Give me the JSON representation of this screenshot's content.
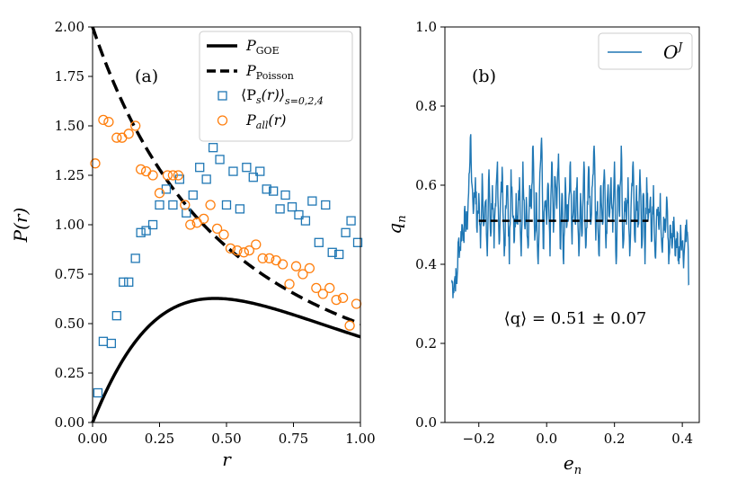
{
  "chart_data": [
    {
      "type": "scatter",
      "panel_label": "(a)",
      "xlabel": "r",
      "ylabel": "P(r)",
      "xlim": [
        0.0,
        1.0
      ],
      "ylim": [
        0.0,
        2.0
      ],
      "xticks": [
        "0.00",
        "0.25",
        "0.50",
        "0.75",
        "1.00"
      ],
      "yticks": [
        "0.00",
        "0.25",
        "0.50",
        "0.75",
        "1.00",
        "1.25",
        "1.50",
        "1.75",
        "2.00"
      ],
      "legend_position": "top-right",
      "colors": {
        "goe": "#000000",
        "poisson": "#000000",
        "ps": "#1f77b4",
        "pall": "#ff7f0e"
      },
      "series": [
        {
          "name": "P_GOE",
          "legend_main": "P",
          "legend_sub": "GOE",
          "style": "solid line",
          "formula": "(27/8) (r + r^2) / (1 + r + r^2)^(5/2)"
        },
        {
          "name": "P_Poisson",
          "legend_main": "P",
          "legend_sub": "Poisson",
          "style": "dashed line",
          "formula": "2 / (1 + r)^2"
        },
        {
          "name": "<P_s(r)>_{s=0,2,4}",
          "legend_main": "⟨P",
          "legend_s": "s",
          "legend_r": "(r)⟩",
          "legend_sub": "s=0,2,4",
          "style": "open squares",
          "x": [
            0.02,
            0.04,
            0.07,
            0.09,
            0.115,
            0.135,
            0.16,
            0.18,
            0.2,
            0.225,
            0.25,
            0.275,
            0.3,
            0.325,
            0.35,
            0.375,
            0.4,
            0.425,
            0.45,
            0.475,
            0.5,
            0.525,
            0.55,
            0.575,
            0.6,
            0.625,
            0.65,
            0.675,
            0.7,
            0.72,
            0.745,
            0.77,
            0.795,
            0.82,
            0.845,
            0.87,
            0.895,
            0.92,
            0.945,
            0.965,
            0.99
          ],
          "y": [
            0.15,
            0.41,
            0.4,
            0.54,
            0.71,
            0.71,
            0.83,
            0.96,
            0.97,
            1.0,
            1.1,
            1.18,
            1.1,
            1.23,
            1.06,
            1.15,
            1.29,
            1.23,
            1.39,
            1.33,
            1.1,
            1.27,
            1.08,
            1.29,
            1.24,
            1.27,
            1.18,
            1.17,
            1.08,
            1.15,
            1.09,
            1.05,
            1.02,
            1.12,
            0.91,
            1.1,
            0.86,
            0.85,
            0.96,
            1.02,
            0.91
          ]
        },
        {
          "name": "P_all(r)",
          "legend_main": "P",
          "legend_sub": "all",
          "legend_r": "(r)",
          "style": "open circles",
          "x": [
            0.01,
            0.04,
            0.06,
            0.09,
            0.11,
            0.135,
            0.16,
            0.18,
            0.2,
            0.225,
            0.25,
            0.28,
            0.3,
            0.32,
            0.345,
            0.365,
            0.39,
            0.415,
            0.44,
            0.465,
            0.49,
            0.515,
            0.54,
            0.565,
            0.585,
            0.61,
            0.635,
            0.66,
            0.685,
            0.71,
            0.735,
            0.76,
            0.785,
            0.81,
            0.835,
            0.86,
            0.885,
            0.91,
            0.935,
            0.96,
            0.985
          ],
          "y": [
            1.31,
            1.53,
            1.52,
            1.44,
            1.44,
            1.46,
            1.5,
            1.28,
            1.27,
            1.25,
            1.16,
            1.25,
            1.25,
            1.25,
            1.1,
            1.0,
            1.01,
            1.03,
            1.1,
            0.98,
            0.95,
            0.88,
            0.87,
            0.86,
            0.87,
            0.9,
            0.83,
            0.83,
            0.82,
            0.8,
            0.7,
            0.79,
            0.75,
            0.78,
            0.68,
            0.65,
            0.68,
            0.62,
            0.63,
            0.49,
            0.6
          ]
        }
      ]
    },
    {
      "type": "line",
      "panel_label": "(b)",
      "xlabel": "e",
      "xlabel_sub": "n",
      "ylabel": "q",
      "ylabel_sub": "n",
      "xlim": [
        -0.3,
        0.45
      ],
      "ylim": [
        0.0,
        1.0
      ],
      "xticks": [
        -0.2,
        0.0,
        0.2,
        0.4
      ],
      "xtick_labels": [
        "−0.2",
        "0.0",
        "0.2",
        "0.4"
      ],
      "yticks": [
        0.0,
        0.2,
        0.4,
        0.6,
        0.8,
        1.0
      ],
      "ytick_labels": [
        "0.0",
        "0.2",
        "0.4",
        "0.6",
        "0.8",
        "1.0"
      ],
      "legend_position": "top-right",
      "annotation": "⟨q⟩ = 0.51 ± 0.07",
      "mean_line": {
        "x": [
          -0.2,
          0.3
        ],
        "y": 0.51,
        "style": "dashed black"
      },
      "series": [
        {
          "name": "O^J",
          "legend_main": "O",
          "legend_sup": "J",
          "color": "#1f77b4",
          "x": [
            -0.28,
            -0.275,
            -0.27,
            -0.265,
            -0.26,
            -0.255,
            -0.25,
            -0.245,
            -0.24,
            -0.235,
            -0.23,
            -0.225,
            -0.22,
            -0.215,
            -0.21,
            -0.205,
            -0.2,
            -0.195,
            -0.19,
            -0.185,
            -0.18,
            -0.175,
            -0.17,
            -0.165,
            -0.16,
            -0.155,
            -0.15,
            -0.145,
            -0.14,
            -0.135,
            -0.13,
            -0.125,
            -0.12,
            -0.115,
            -0.11,
            -0.105,
            -0.1,
            -0.095,
            -0.09,
            -0.085,
            -0.08,
            -0.075,
            -0.07,
            -0.065,
            -0.06,
            -0.055,
            -0.05,
            -0.045,
            -0.04,
            -0.035,
            -0.03,
            -0.025,
            -0.02,
            -0.015,
            -0.01,
            -0.005,
            0.0,
            0.005,
            0.01,
            0.015,
            0.02,
            0.025,
            0.03,
            0.035,
            0.04,
            0.045,
            0.05,
            0.055,
            0.06,
            0.065,
            0.07,
            0.075,
            0.08,
            0.085,
            0.09,
            0.095,
            0.1,
            0.105,
            0.11,
            0.115,
            0.12,
            0.125,
            0.13,
            0.135,
            0.14,
            0.145,
            0.15,
            0.155,
            0.16,
            0.165,
            0.17,
            0.175,
            0.18,
            0.185,
            0.19,
            0.195,
            0.2,
            0.205,
            0.21,
            0.215,
            0.22,
            0.225,
            0.23,
            0.235,
            0.24,
            0.245,
            0.25,
            0.255,
            0.26,
            0.265,
            0.27,
            0.275,
            0.28,
            0.285,
            0.29,
            0.295,
            0.3,
            0.305,
            0.31,
            0.315,
            0.32,
            0.325,
            0.33,
            0.335,
            0.34,
            0.345,
            0.35,
            0.355,
            0.36,
            0.365,
            0.37,
            0.375,
            0.38,
            0.385,
            0.39,
            0.395,
            0.4,
            0.405,
            0.41,
            0.415,
            0.42
          ],
          "y": [
            0.36,
            0.34,
            0.37,
            0.35,
            0.46,
            0.44,
            0.5,
            0.48,
            0.52,
            0.49,
            0.58,
            0.72,
            0.6,
            0.54,
            0.62,
            0.48,
            0.58,
            0.44,
            0.63,
            0.5,
            0.56,
            0.42,
            0.64,
            0.47,
            0.6,
            0.44,
            0.55,
            0.66,
            0.45,
            0.58,
            0.62,
            0.42,
            0.54,
            0.6,
            0.4,
            0.64,
            0.52,
            0.46,
            0.58,
            0.5,
            0.62,
            0.42,
            0.66,
            0.5,
            0.57,
            0.44,
            0.6,
            0.54,
            0.7,
            0.46,
            0.58,
            0.4,
            0.63,
            0.72,
            0.44,
            0.56,
            0.5,
            0.6,
            0.42,
            0.66,
            0.48,
            0.62,
            0.54,
            0.68,
            0.44,
            0.58,
            0.4,
            0.62,
            0.5,
            0.56,
            0.66,
            0.45,
            0.58,
            0.5,
            0.62,
            0.42,
            0.58,
            0.48,
            0.66,
            0.44,
            0.56,
            0.64,
            0.5,
            0.6,
            0.7,
            0.46,
            0.56,
            0.42,
            0.6,
            0.5,
            0.64,
            0.44,
            0.58,
            0.52,
            0.62,
            0.48,
            0.66,
            0.4,
            0.6,
            0.52,
            0.7,
            0.44,
            0.56,
            0.5,
            0.62,
            0.42,
            0.58,
            0.66,
            0.46,
            0.6,
            0.5,
            0.64,
            0.44,
            0.58,
            0.4,
            0.62,
            0.52,
            0.56,
            0.46,
            0.6,
            0.42,
            0.54,
            0.5,
            0.58,
            0.44,
            0.52,
            0.48,
            0.56,
            0.4,
            0.5,
            0.44,
            0.52,
            0.42,
            0.48,
            0.4,
            0.5,
            0.45,
            0.42,
            0.5,
            0.48,
            0.35
          ]
        }
      ]
    }
  ]
}
